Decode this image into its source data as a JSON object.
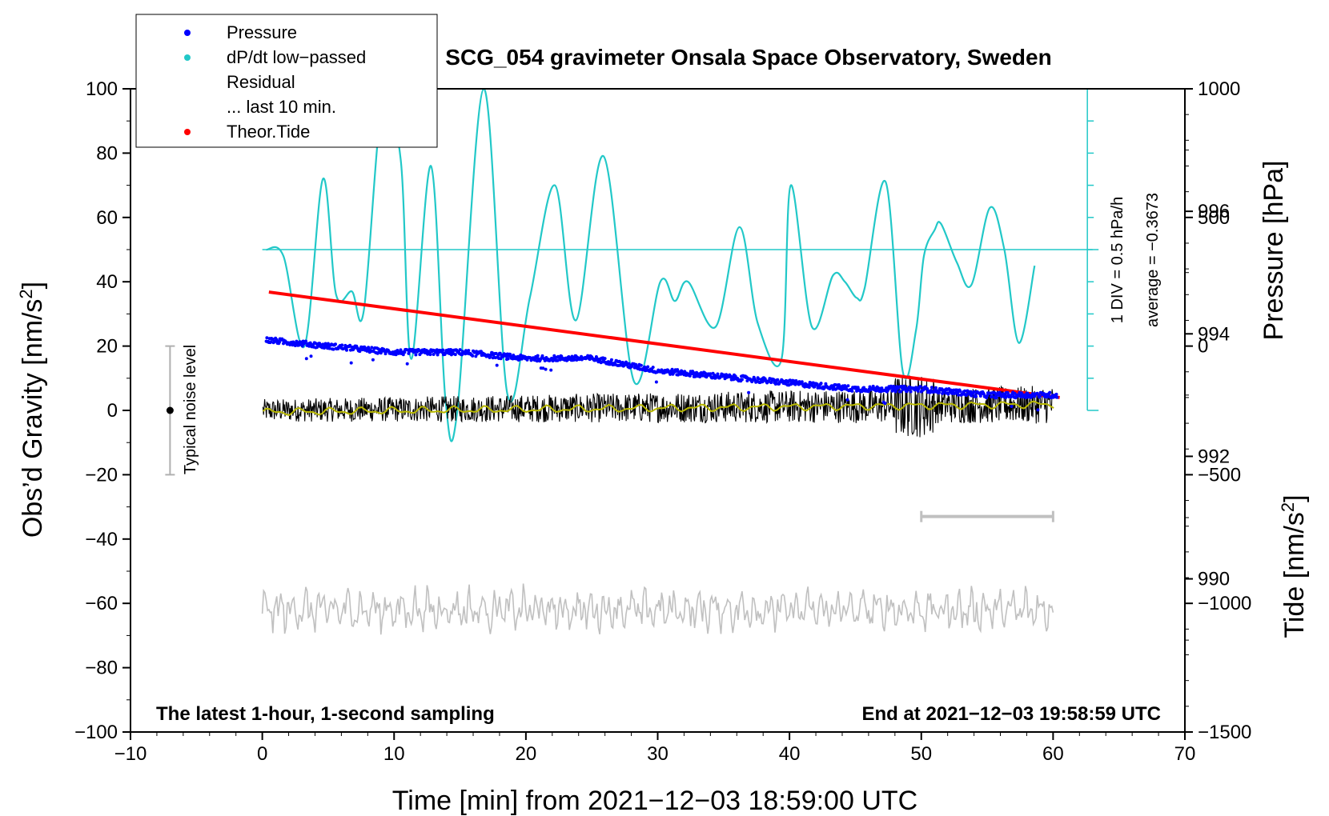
{
  "chart_data": {
    "type": "line",
    "title": "SCG_054 gravimeter Onsala Space Observatory, Sweden",
    "xlabel": "Time [min] from 2021−12−03 18:59:00 UTC",
    "ylabel_left": "Obs’d Gravity [nm/s",
    "ylabel_left_sup": "2",
    "ylabel_left_close": "]",
    "ylabel_pressure": "Pressure [hPa]",
    "ylabel_tide": "Tide [nm/s",
    "ylabel_tide_sup": "2",
    "ylabel_tide_close": "]",
    "xlim": [
      -10,
      70
    ],
    "ylim_gravity": [
      -100,
      100
    ],
    "ylim_pressure": [
      987.5,
      998
    ],
    "ylim_tide": [
      -1500,
      1000
    ],
    "x_ticks": [
      "−10",
      "0",
      "10",
      "20",
      "30",
      "40",
      "50",
      "60",
      "70"
    ],
    "y_ticks_gravity": [
      "100",
      "80",
      "60",
      "40",
      "20",
      "0",
      "−20",
      "−40",
      "−60",
      "−80",
      "−100"
    ],
    "y_ticks_pressure": [
      "996",
      "994",
      "992",
      "990"
    ],
    "y_ticks_tide": [
      "1000",
      "500",
      "0",
      "−500",
      "−1000",
      "−1500"
    ],
    "legend": [
      {
        "name": "Pressure",
        "color": "#0000ff"
      },
      {
        "name": "dP/dt low−passed",
        "color": "#22c8c8"
      },
      {
        "name": "Residual",
        "color": "#000000"
      },
      {
        "name": "... last 10 min.",
        "color": "#c0c0c0"
      },
      {
        "name": "Theor.Tide",
        "color": "#ff0000"
      }
    ],
    "annotations": {
      "noise_level": "Typical noise level",
      "div": "1 DIV = 0.5 hPa/h",
      "average": "average = −0.3673",
      "left_note": "The latest 1-hour, 1-second sampling",
      "right_note": "End at 2021−12−03 19:58:59 UTC"
    },
    "noise_bar": {
      "x": -7,
      "y": 0,
      "low": -20,
      "high": 20
    },
    "last10_range": [
      50,
      60
    ],
    "series": [
      {
        "name": "Pressure",
        "unit": "hPa",
        "x": [
          0.3,
          5,
          10,
          15,
          20,
          25,
          30,
          35,
          40,
          45,
          50,
          55,
          60.3
        ],
        "values": [
          993.9,
          993.8,
          993.7,
          993.7,
          993.6,
          993.6,
          993.4,
          993.3,
          993.2,
          993.1,
          993.1,
          993.0,
          993.0
        ]
      },
      {
        "name": "dP/dt low−passed",
        "unit": "gravity axis",
        "x": [
          0.3,
          1.6,
          3.2,
          4.6,
          5.6,
          6.8,
          7.7,
          9.1,
          10.5,
          11.3,
          12.8,
          13.9,
          14.8,
          16.8,
          18.6,
          20.3,
          22.2,
          23.8,
          25.9,
          28.2,
          30.2,
          31.3,
          32.3,
          34.4,
          36.2,
          37.6,
          39.4,
          40.1,
          41.7,
          43.3,
          44.2,
          45.1,
          45.7,
          47.3,
          48.6,
          49.6,
          50.2,
          51.0,
          51.5,
          52.7,
          53.8,
          55.2,
          56.3,
          57.4,
          58.6
        ],
        "values": [
          50,
          48,
          20,
          72,
          36,
          37,
          31,
          95,
          78,
          16,
          76,
          3,
          0,
          100,
          5,
          35,
          70,
          28,
          79,
          9,
          40,
          34,
          40,
          26,
          57,
          27,
          16,
          70,
          26,
          42,
          40,
          35,
          38,
          71,
          12,
          25,
          48,
          56,
          58,
          46,
          39,
          63,
          50,
          21,
          45
        ]
      },
      {
        "name": "Theor.Tide",
        "unit": "nm/s^2",
        "x": [
          0.5,
          60.5
        ],
        "values": [
          210,
          -200
        ]
      }
    ]
  }
}
